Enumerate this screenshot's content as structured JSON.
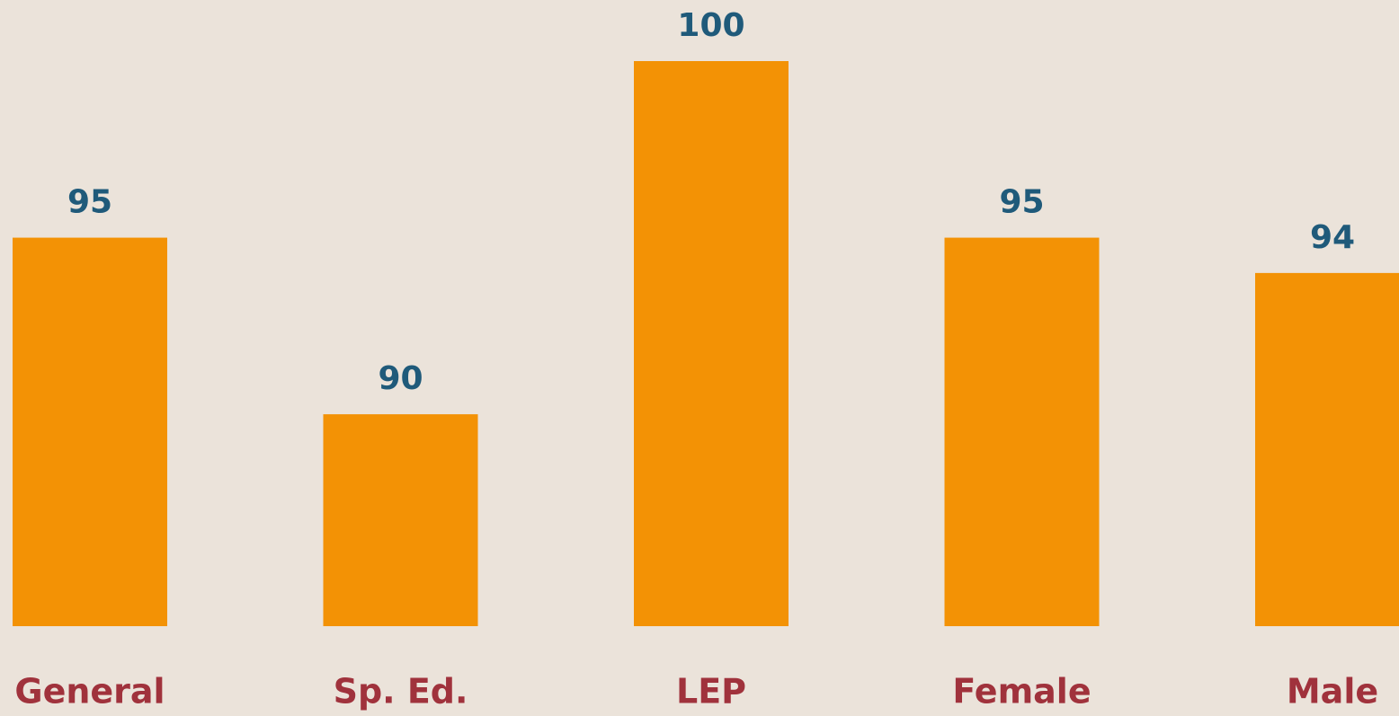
{
  "chart_data": {
    "type": "bar",
    "categories": [
      "General",
      "Sp. Ed.",
      "LEP",
      "Female",
      "Male"
    ],
    "values": [
      95,
      90,
      100,
      95,
      94
    ],
    "color": "#f39205",
    "ylim": [
      84,
      100
    ]
  }
}
